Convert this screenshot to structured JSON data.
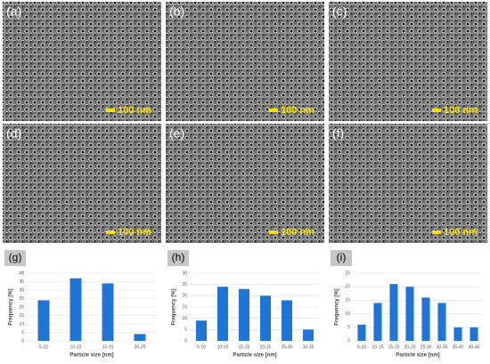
{
  "images": [
    {
      "label": "(a)",
      "scale_bar": "100 nm"
    },
    {
      "label": "(b)",
      "scale_bar": "100 nm"
    },
    {
      "label": "(c)",
      "scale_bar": "100 nm"
    },
    {
      "label": "(d)",
      "scale_bar": "100 nm"
    },
    {
      "label": "(e)",
      "scale_bar": "100 nm"
    },
    {
      "label": "(f)",
      "scale_bar": "100 nm"
    }
  ],
  "chart_data": [
    {
      "type": "bar",
      "panel": "(g)",
      "y_label": "Frequency [%]",
      "x_label": "Particle size [nm]",
      "categories": [
        "5-10",
        "10-15",
        "15-20",
        "20-25"
      ],
      "values": [
        24,
        37,
        34,
        4
      ],
      "color": "#1f74d4",
      "ylim": [
        0,
        40
      ],
      "yticks": [
        0,
        5,
        10,
        15,
        20,
        25,
        30,
        35,
        40
      ],
      "grid": true
    },
    {
      "type": "bar",
      "panel": "(h)",
      "y_label": "Frequency [%]",
      "x_label": "Particle size [nm]",
      "categories": [
        "5-10",
        "10-15",
        "15-20",
        "20-25",
        "25-30",
        "30-35"
      ],
      "values": [
        9,
        24,
        23,
        20,
        18,
        5
      ],
      "color": "#1f74d4",
      "ylim": [
        0,
        30
      ],
      "yticks": [
        0,
        5,
        10,
        15,
        20,
        25,
        30
      ],
      "grid": true
    },
    {
      "type": "bar",
      "panel": "(i)",
      "y_label": "Frequency [%]",
      "x_label": "Particle size [nm]",
      "categories": [
        "5-10",
        "10-15",
        "15-20",
        "20-25",
        "25-30",
        "30-35",
        "35-40",
        "40-45"
      ],
      "values": [
        6,
        14,
        21,
        20,
        16,
        14,
        5,
        5
      ],
      "color": "#1f74d4",
      "ylim": [
        0,
        25
      ],
      "yticks": [
        0,
        5,
        10,
        15,
        20,
        25
      ],
      "grid": true
    }
  ]
}
